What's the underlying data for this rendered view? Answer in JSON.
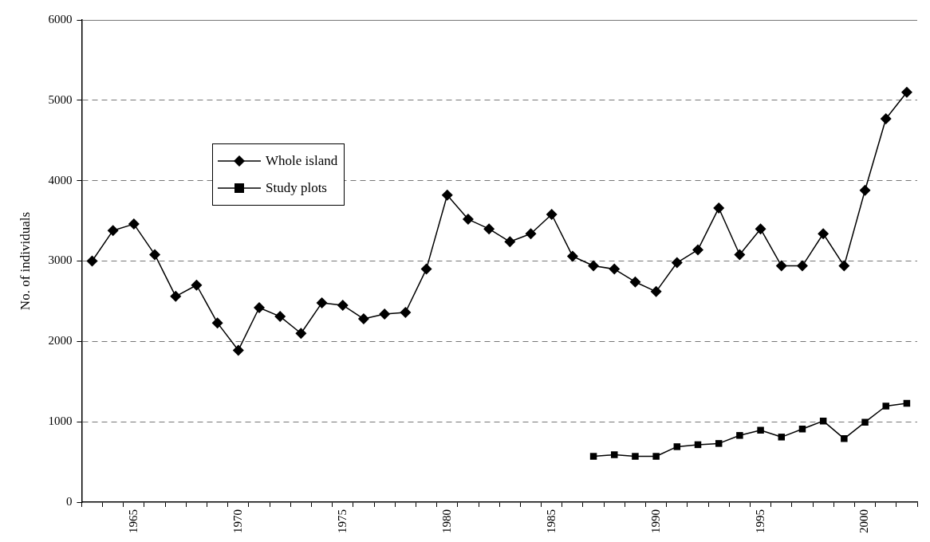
{
  "chart_data": {
    "type": "line",
    "ylabel": "No. of individuals",
    "categories": [
      null,
      null,
      "1965",
      null,
      null,
      null,
      null,
      "1970",
      null,
      null,
      null,
      null,
      "1975",
      null,
      null,
      null,
      null,
      "1980",
      null,
      null,
      null,
      null,
      "1985",
      null,
      null,
      null,
      null,
      "1990",
      null,
      null,
      null,
      null,
      "1995",
      null,
      null,
      null,
      null,
      "2000",
      null,
      null
    ],
    "series": [
      {
        "name": "Whole island",
        "color": "#000000",
        "marker": "diamond",
        "values": [
          3000,
          3380,
          3460,
          3080,
          2560,
          2700,
          2230,
          1890,
          2420,
          2310,
          2100,
          2480,
          2450,
          2280,
          2340,
          2360,
          2900,
          3820,
          3520,
          3400,
          3240,
          3340,
          3580,
          3060,
          2940,
          2900,
          2740,
          2620,
          2980,
          3140,
          3660,
          3080,
          3400,
          2940,
          2940,
          3340,
          2940,
          3880,
          4770,
          5100
        ]
      },
      {
        "name": "Study plots",
        "color": "#000000",
        "marker": "square",
        "values": [
          null,
          null,
          null,
          null,
          null,
          null,
          null,
          null,
          null,
          null,
          null,
          null,
          null,
          null,
          null,
          null,
          null,
          null,
          null,
          null,
          null,
          null,
          null,
          null,
          570,
          590,
          570,
          570,
          690,
          715,
          730,
          830,
          895,
          810,
          910,
          1010,
          790,
          995,
          1195,
          1230
        ]
      }
    ],
    "ylim": [
      0,
      6000
    ],
    "yticks": [
      0,
      1000,
      2000,
      3000,
      4000,
      5000,
      6000
    ],
    "grid": "y",
    "legend": "top left"
  }
}
